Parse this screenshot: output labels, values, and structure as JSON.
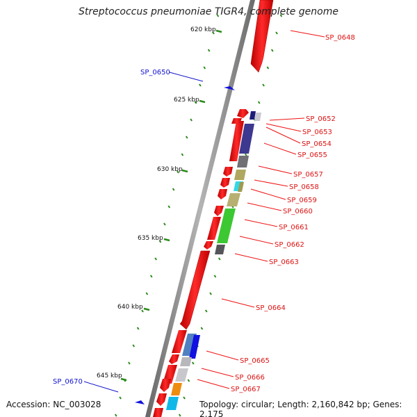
{
  "header": {
    "title": "Streptococcus pneumoniae TIGR4, complete genome",
    "accession": "Accession: NC_003028",
    "summary": "Topology: circular; Length: 2,160,842 bp; Genes: 2,175"
  },
  "colors": {
    "backbone": "#8a8a8a",
    "cds": "#ee1111",
    "gc_tick": "#2a8a1a",
    "label_red": "#dd1111",
    "label_blue": "#1111cc"
  },
  "ticks": [
    {
      "label": "620 kbp"
    },
    {
      "label": "625 kbp"
    },
    {
      "label": "630 kbp"
    },
    {
      "label": "635 kbp"
    },
    {
      "label": "640 kbp"
    },
    {
      "label": "645 kbp"
    }
  ],
  "genes": [
    {
      "label": "SP_0648"
    },
    {
      "label": "SP_0650"
    },
    {
      "label": "SP_0652"
    },
    {
      "label": "SP_0653"
    },
    {
      "label": "SP_0654"
    },
    {
      "label": "SP_0655"
    },
    {
      "label": "SP_0657"
    },
    {
      "label": "SP_0658"
    },
    {
      "label": "SP_0659"
    },
    {
      "label": "SP_0660"
    },
    {
      "label": "SP_0661"
    },
    {
      "label": "SP_0662"
    },
    {
      "label": "SP_0663"
    },
    {
      "label": "SP_0664"
    },
    {
      "label": "SP_0665"
    },
    {
      "label": "SP_0666"
    },
    {
      "label": "SP_0667"
    },
    {
      "label": "SP_0670"
    }
  ],
  "features": [
    {
      "name": "SP_0648 cds",
      "strand": "forward",
      "color": "#ee1111"
    },
    {
      "name": "SP_0650 cds",
      "strand": "reverse",
      "color": "#1111dd"
    }
  ]
}
